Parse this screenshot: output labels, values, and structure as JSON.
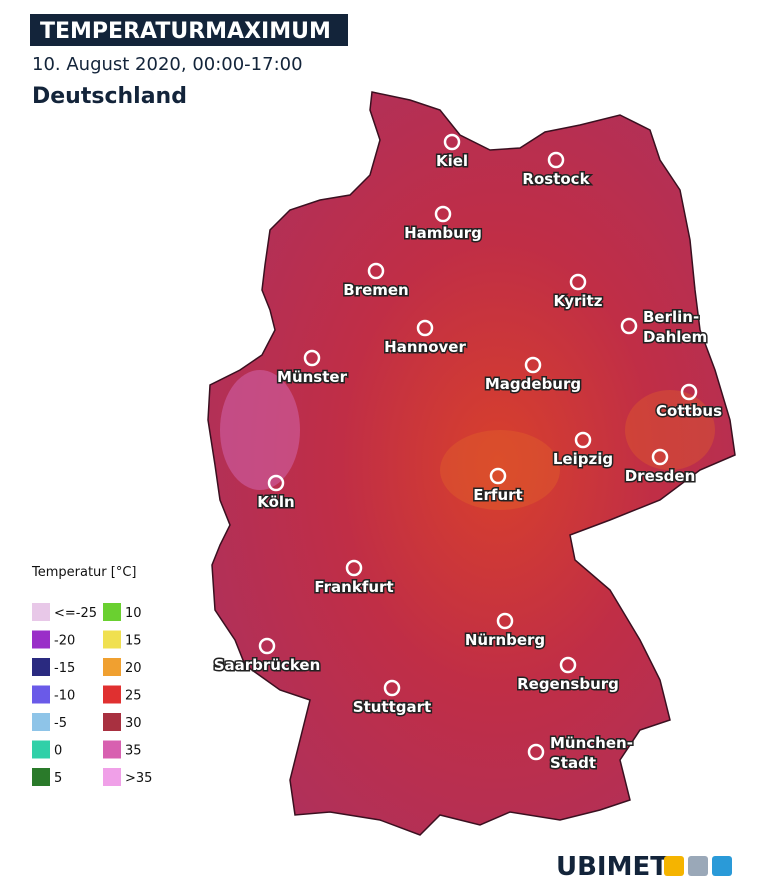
{
  "header": {
    "title": "TEMPERATURMAXIMUM",
    "subtitle": "10. August 2020, 00:00-17:00",
    "region": "Deutschland"
  },
  "cities": [
    {
      "lines": [
        "Kiel"
      ]
    },
    {
      "lines": [
        "Rostock"
      ]
    },
    {
      "lines": [
        "Hamburg"
      ]
    },
    {
      "lines": [
        "Bremen"
      ]
    },
    {
      "lines": [
        "Kyritz"
      ]
    },
    {
      "lines": [
        "Berlin-",
        "Dahlem"
      ]
    },
    {
      "lines": [
        "Hannover"
      ]
    },
    {
      "lines": [
        "Münster"
      ]
    },
    {
      "lines": [
        "Magdeburg"
      ]
    },
    {
      "lines": [
        "Cottbus"
      ]
    },
    {
      "lines": [
        "Leipzig"
      ]
    },
    {
      "lines": [
        "Dresden"
      ]
    },
    {
      "lines": [
        "Erfurt"
      ]
    },
    {
      "lines": [
        "Köln"
      ]
    },
    {
      "lines": [
        "Frankfurt"
      ]
    },
    {
      "lines": [
        "Nürnberg"
      ]
    },
    {
      "lines": [
        "Saarbrücken"
      ]
    },
    {
      "lines": [
        "Regensburg"
      ]
    },
    {
      "lines": [
        "Stuttgart"
      ]
    },
    {
      "lines": [
        "München-",
        "Stadt"
      ]
    }
  ],
  "legend": {
    "title": "Temperatur [°C]",
    "items": [
      {
        "label": "<=-25",
        "color": "#e8c8e8"
      },
      {
        "label": "-20",
        "color": "#9a2ec8"
      },
      {
        "label": "-15",
        "color": "#2a2a80"
      },
      {
        "label": "-10",
        "color": "#6a5ae8"
      },
      {
        "label": "-5",
        "color": "#8ec4e8"
      },
      {
        "label": "0",
        "color": "#30d0a8"
      },
      {
        "label": "5",
        "color": "#2a7a2a"
      },
      {
        "label": "10",
        "color": "#6ad030"
      },
      {
        "label": "15",
        "color": "#f0e050"
      },
      {
        "label": "20",
        "color": "#f0a030"
      },
      {
        "label": "25",
        "color": "#e03030"
      },
      {
        "label": "30",
        "color": "#a83040"
      },
      {
        "label": "35",
        "color": "#d860b0"
      },
      {
        "label": ">35",
        "color": "#f0a0e8"
      }
    ]
  },
  "logo": "UBIMET"
}
